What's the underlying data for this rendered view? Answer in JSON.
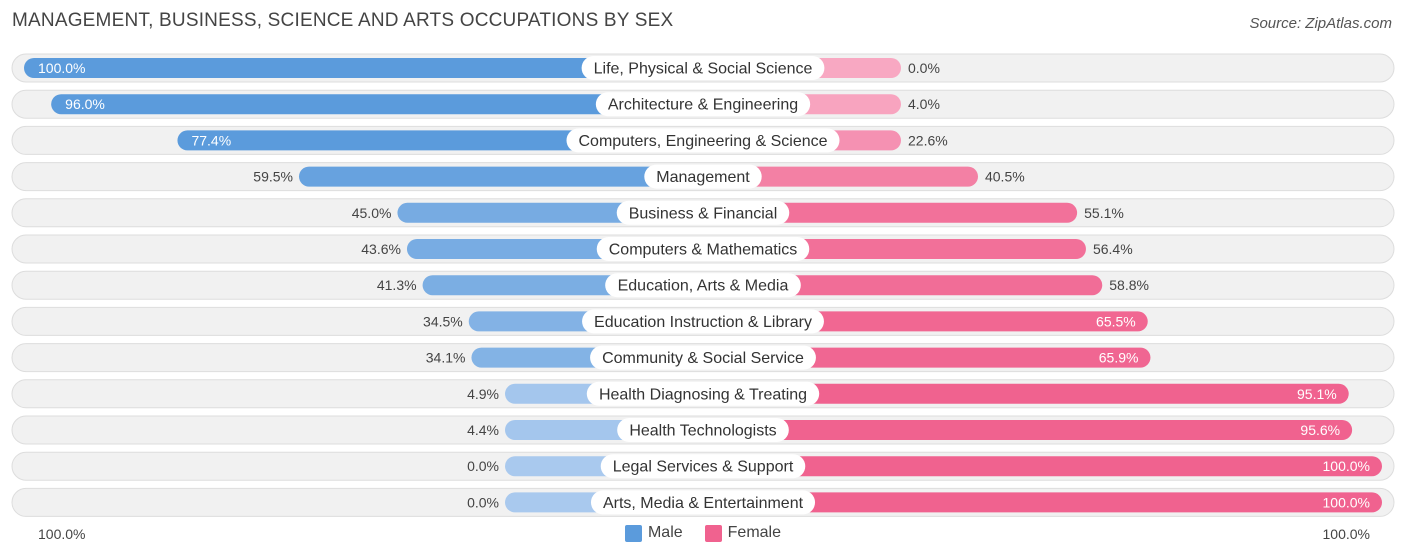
{
  "header": {
    "title": "MANAGEMENT, BUSINESS, SCIENCE AND ARTS OCCUPATIONS BY SEX",
    "source": "Source: ZipAtlas.com"
  },
  "colors": {
    "male_strong": "#5b9bdc",
    "male_light": "#a9c9ee",
    "female_strong": "#f0628f",
    "female_light": "#f8a8c2",
    "row_bg": "#f1f1f1",
    "row_border": "#dddddd"
  },
  "axis": {
    "left_label": "100.0%",
    "right_label": "100.0%"
  },
  "legend": {
    "male_label": "Male",
    "female_label": "Female"
  },
  "chart_data": {
    "type": "bar",
    "orientation": "horizontal-diverging",
    "title": "MANAGEMENT, BUSINESS, SCIENCE AND ARTS OCCUPATIONS BY SEX",
    "xlim": [
      -100,
      100
    ],
    "categories": [
      "Life, Physical & Social Science",
      "Architecture & Engineering",
      "Computers, Engineering & Science",
      "Management",
      "Business & Financial",
      "Computers & Mathematics",
      "Education, Arts & Media",
      "Education Instruction & Library",
      "Community & Social Service",
      "Health Diagnosing & Treating",
      "Health Technologists",
      "Legal Services & Support",
      "Arts, Media & Entertainment"
    ],
    "series": [
      {
        "name": "Male",
        "values": [
          100.0,
          96.0,
          77.4,
          59.5,
          45.0,
          43.6,
          41.3,
          34.5,
          34.1,
          4.9,
          4.4,
          0.0,
          0.0
        ],
        "labels": [
          "100.0%",
          "96.0%",
          "77.4%",
          "59.5%",
          "45.0%",
          "43.6%",
          "41.3%",
          "34.5%",
          "34.1%",
          "4.9%",
          "4.4%",
          "0.0%",
          "0.0%"
        ]
      },
      {
        "name": "Female",
        "values": [
          0.0,
          4.0,
          22.6,
          40.5,
          55.1,
          56.4,
          58.8,
          65.5,
          65.9,
          95.1,
          95.6,
          100.0,
          100.0
        ],
        "labels": [
          "0.0%",
          "4.0%",
          "22.6%",
          "40.5%",
          "55.1%",
          "56.4%",
          "58.8%",
          "65.5%",
          "65.9%",
          "95.1%",
          "95.6%",
          "100.0%",
          "100.0%"
        ]
      }
    ]
  }
}
